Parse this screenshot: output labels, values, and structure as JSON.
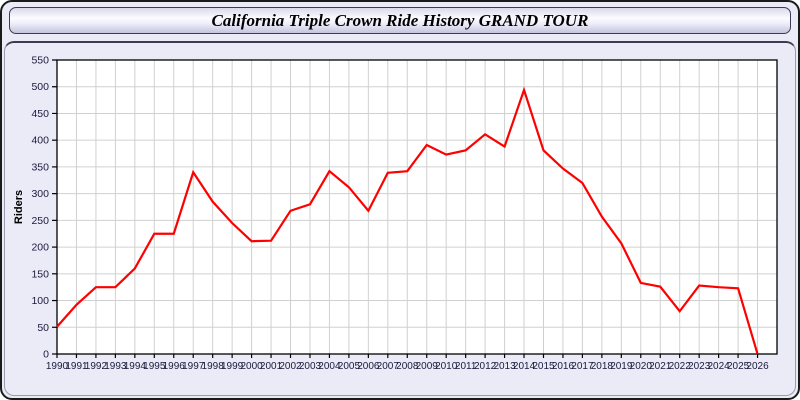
{
  "header": {
    "title": "California Triple Crown Ride History GRAND TOUR"
  },
  "colors": {
    "line": "#ff0000",
    "grid": "#d0d0d0",
    "plot_border": "#000000",
    "tick_label": "#1a1a3c",
    "axis_title": "#000000",
    "panel_bg": "#ebebf8",
    "plot_bg": "#ffffff"
  },
  "chart_data": {
    "type": "line",
    "title": "California Triple Crown Ride History GRAND TOUR",
    "xlabel": "",
    "ylabel": "Riders",
    "ylim": [
      0,
      550
    ],
    "ytick_step": 50,
    "grid": true,
    "legend_position": "none",
    "x": [
      1990,
      1991,
      1992,
      1993,
      1994,
      1995,
      1996,
      1997,
      1998,
      1999,
      2000,
      2001,
      2002,
      2003,
      2004,
      2005,
      2006,
      2007,
      2008,
      2009,
      2010,
      2011,
      2012,
      2013,
      2014,
      2015,
      2016,
      2017,
      2018,
      2019,
      2020,
      2021,
      2022,
      2023,
      2024,
      2025,
      2026
    ],
    "values": [
      51,
      92,
      125,
      125,
      160,
      225,
      225,
      340,
      285,
      245,
      211,
      212,
      268,
      280,
      342,
      312,
      268,
      339,
      342,
      391,
      373,
      381,
      411,
      388,
      494,
      381,
      347,
      320,
      257,
      207,
      133,
      126,
      80,
      128,
      125,
      123,
      0
    ]
  }
}
